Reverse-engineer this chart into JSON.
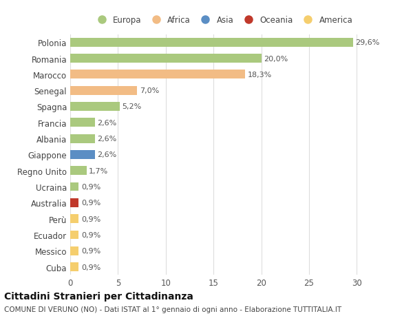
{
  "categories": [
    "Polonia",
    "Romania",
    "Marocco",
    "Senegal",
    "Spagna",
    "Francia",
    "Albania",
    "Giappone",
    "Regno Unito",
    "Ucraina",
    "Australia",
    "Perù",
    "Ecuador",
    "Messico",
    "Cuba"
  ],
  "values": [
    29.6,
    20.0,
    18.3,
    7.0,
    5.2,
    2.6,
    2.6,
    2.6,
    1.7,
    0.9,
    0.9,
    0.9,
    0.9,
    0.9,
    0.9
  ],
  "labels": [
    "29,6%",
    "20,0%",
    "18,3%",
    "7,0%",
    "5,2%",
    "2,6%",
    "2,6%",
    "2,6%",
    "1,7%",
    "0,9%",
    "0,9%",
    "0,9%",
    "0,9%",
    "0,9%",
    "0,9%"
  ],
  "continents": [
    "Europa",
    "Europa",
    "Africa",
    "Africa",
    "Europa",
    "Europa",
    "Europa",
    "Asia",
    "Europa",
    "Europa",
    "Oceania",
    "America",
    "America",
    "America",
    "America"
  ],
  "continent_colors": {
    "Europa": "#aac97e",
    "Africa": "#f2bc85",
    "Asia": "#5b8ec4",
    "Oceania": "#c0392b",
    "America": "#f5ce6e"
  },
  "legend_order": [
    "Europa",
    "Africa",
    "Asia",
    "Oceania",
    "America"
  ],
  "title": "Cittadini Stranieri per Cittadinanza",
  "subtitle": "COMUNE DI VERUNO (NO) - Dati ISTAT al 1° gennaio di ogni anno - Elaborazione TUTTITALIA.IT",
  "xlim": [
    0,
    32
  ],
  "xticks": [
    0,
    5,
    10,
    15,
    20,
    25,
    30
  ],
  "background_color": "#ffffff",
  "grid_color": "#dddddd",
  "bar_height": 0.55,
  "title_fontsize": 10,
  "subtitle_fontsize": 7.5,
  "tick_fontsize": 8.5,
  "label_fontsize": 8,
  "legend_fontsize": 8.5
}
